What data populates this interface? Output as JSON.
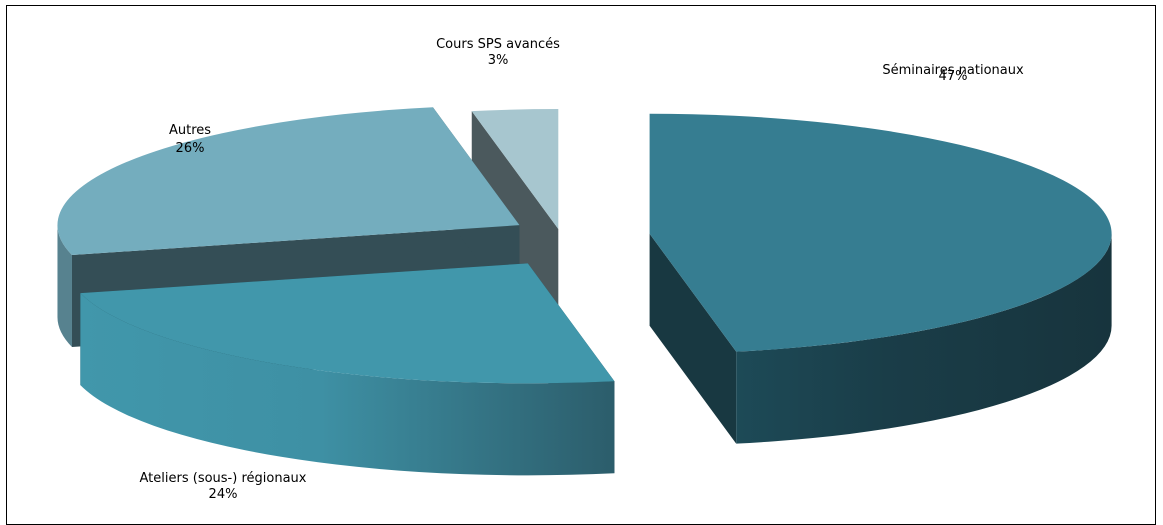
{
  "chart_data": {
    "type": "pie",
    "style": "3d-exploded",
    "title": "",
    "categories": [
      "Séminaires nationaux",
      "Ateliers (sous-) régionaux",
      "Autres",
      "Cours SPS avancés"
    ],
    "values": [
      47,
      24,
      26,
      3
    ],
    "value_labels": [
      "47%",
      "24%",
      "26%",
      "3%"
    ],
    "colors": [
      "#367d91",
      "#4197ab",
      "#74adbe",
      "#a7c6cf"
    ]
  }
}
